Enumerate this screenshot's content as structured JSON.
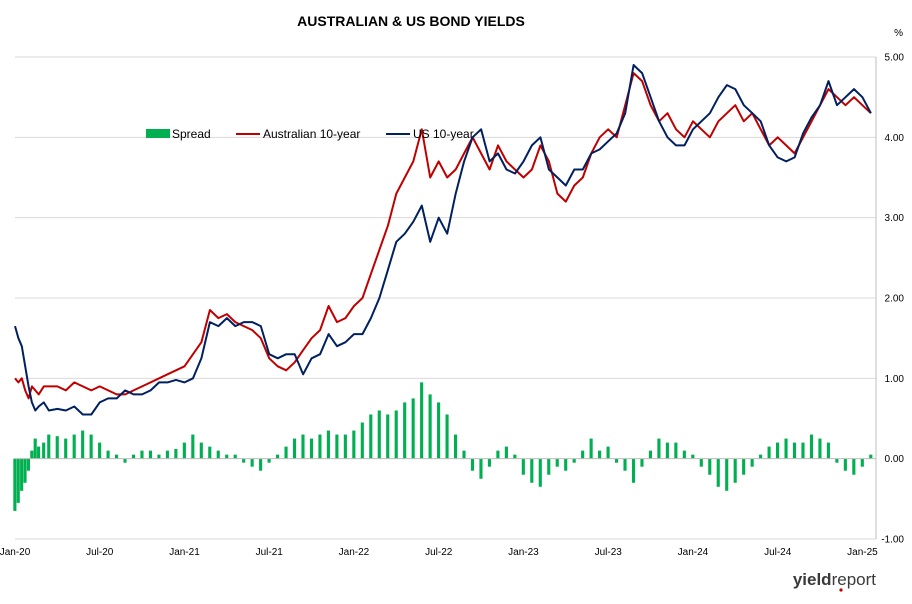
{
  "chart_data": {
    "type": "line",
    "title": "AUSTRALIAN & US BOND YIELDS",
    "y_unit_label": "%",
    "ylim": [
      -1.0,
      5.0
    ],
    "y_ticks": [
      "5.00",
      "4.00",
      "3.00",
      "2.00",
      "1.00",
      "0.00",
      "-1.00"
    ],
    "y_tick_values": [
      5,
      4,
      3,
      2,
      1,
      0,
      -1
    ],
    "x_ticks": [
      "Jan-20",
      "Jul-20",
      "Jan-21",
      "Jul-21",
      "Jan-22",
      "Jul-22",
      "Jan-23",
      "Jul-23",
      "Jan-24",
      "Jul-24",
      "Jan-25"
    ],
    "x_tick_values": [
      2020.0,
      2020.5,
      2021.0,
      2021.5,
      2022.0,
      2022.5,
      2023.0,
      2023.5,
      2024.0,
      2024.5,
      2025.0
    ],
    "x_range": [
      2020.0,
      2025.08
    ],
    "grid": true,
    "legend_position": "top-left, inside plot",
    "series": [
      {
        "name": "Spread",
        "kind": "bar",
        "color": "#00b050",
        "x": [
          2020.0,
          2020.02,
          2020.04,
          2020.06,
          2020.08,
          2020.1,
          2020.12,
          2020.14,
          2020.17,
          2020.2,
          2020.25,
          2020.3,
          2020.35,
          2020.4,
          2020.45,
          2020.5,
          2020.55,
          2020.6,
          2020.65,
          2020.7,
          2020.75,
          2020.8,
          2020.85,
          2020.9,
          2020.95,
          2021.0,
          2021.05,
          2021.1,
          2021.15,
          2021.2,
          2021.25,
          2021.3,
          2021.35,
          2021.4,
          2021.45,
          2021.5,
          2021.55,
          2021.6,
          2021.65,
          2021.7,
          2021.75,
          2021.8,
          2021.85,
          2021.9,
          2021.95,
          2022.0,
          2022.05,
          2022.1,
          2022.15,
          2022.2,
          2022.25,
          2022.3,
          2022.35,
          2022.4,
          2022.45,
          2022.5,
          2022.55,
          2022.6,
          2022.65,
          2022.7,
          2022.75,
          2022.8,
          2022.85,
          2022.9,
          2022.95,
          2023.0,
          2023.05,
          2023.1,
          2023.15,
          2023.2,
          2023.25,
          2023.3,
          2023.35,
          2023.4,
          2023.45,
          2023.5,
          2023.55,
          2023.6,
          2023.65,
          2023.7,
          2023.75,
          2023.8,
          2023.85,
          2023.9,
          2023.95,
          2024.0,
          2024.05,
          2024.1,
          2024.15,
          2024.2,
          2024.25,
          2024.3,
          2024.35,
          2024.4,
          2024.45,
          2024.5,
          2024.55,
          2024.6,
          2024.65,
          2024.7,
          2024.75,
          2024.8,
          2024.85,
          2024.9,
          2024.95,
          2025.0,
          2025.05
        ],
        "values": [
          -0.65,
          -0.55,
          -0.4,
          -0.3,
          -0.15,
          0.1,
          0.25,
          0.15,
          0.2,
          0.3,
          0.28,
          0.25,
          0.3,
          0.35,
          0.3,
          0.2,
          0.1,
          0.05,
          -0.05,
          0.05,
          0.1,
          0.1,
          0.05,
          0.1,
          0.12,
          0.2,
          0.3,
          0.2,
          0.15,
          0.1,
          0.05,
          0.05,
          -0.05,
          -0.1,
          -0.15,
          -0.05,
          0.05,
          0.15,
          0.25,
          0.3,
          0.25,
          0.3,
          0.35,
          0.3,
          0.3,
          0.35,
          0.45,
          0.55,
          0.6,
          0.55,
          0.6,
          0.7,
          0.75,
          0.95,
          0.8,
          0.7,
          0.55,
          0.3,
          0.1,
          -0.15,
          -0.25,
          -0.1,
          0.1,
          0.15,
          0.05,
          -0.2,
          -0.3,
          -0.35,
          -0.2,
          -0.1,
          -0.15,
          -0.05,
          0.1,
          0.25,
          0.1,
          0.15,
          -0.05,
          -0.15,
          -0.3,
          -0.1,
          0.1,
          0.25,
          0.2,
          0.2,
          0.1,
          0.05,
          -0.1,
          -0.2,
          -0.35,
          -0.4,
          -0.3,
          -0.2,
          -0.1,
          0.05,
          0.15,
          0.2,
          0.25,
          0.2,
          0.2,
          0.3,
          0.25,
          0.2,
          -0.05,
          -0.15,
          -0.2,
          -0.1,
          0.05
        ]
      },
      {
        "name": "Australian 10-year",
        "kind": "line",
        "color": "#c00000",
        "x": [
          2020.0,
          2020.02,
          2020.04,
          2020.06,
          2020.08,
          2020.1,
          2020.12,
          2020.14,
          2020.17,
          2020.2,
          2020.25,
          2020.3,
          2020.35,
          2020.4,
          2020.45,
          2020.5,
          2020.55,
          2020.6,
          2020.65,
          2020.7,
          2020.75,
          2020.8,
          2020.85,
          2020.9,
          2020.95,
          2021.0,
          2021.05,
          2021.1,
          2021.15,
          2021.2,
          2021.25,
          2021.3,
          2021.35,
          2021.4,
          2021.45,
          2021.5,
          2021.55,
          2021.6,
          2021.65,
          2021.7,
          2021.75,
          2021.8,
          2021.85,
          2021.9,
          2021.95,
          2022.0,
          2022.05,
          2022.1,
          2022.15,
          2022.2,
          2022.25,
          2022.3,
          2022.35,
          2022.4,
          2022.45,
          2022.5,
          2022.55,
          2022.6,
          2022.65,
          2022.7,
          2022.75,
          2022.8,
          2022.85,
          2022.9,
          2022.95,
          2023.0,
          2023.05,
          2023.1,
          2023.15,
          2023.2,
          2023.25,
          2023.3,
          2023.35,
          2023.4,
          2023.45,
          2023.5,
          2023.55,
          2023.6,
          2023.65,
          2023.7,
          2023.75,
          2023.8,
          2023.85,
          2023.9,
          2023.95,
          2024.0,
          2024.05,
          2024.1,
          2024.15,
          2024.2,
          2024.25,
          2024.3,
          2024.35,
          2024.4,
          2024.45,
          2024.5,
          2024.55,
          2024.6,
          2024.65,
          2024.7,
          2024.75,
          2024.8,
          2024.85,
          2024.9,
          2024.95,
          2025.0,
          2025.05
        ],
        "values": [
          1.0,
          0.95,
          1.0,
          0.85,
          0.75,
          0.9,
          0.85,
          0.8,
          0.9,
          0.9,
          0.9,
          0.85,
          0.95,
          0.9,
          0.85,
          0.9,
          0.85,
          0.8,
          0.8,
          0.85,
          0.9,
          0.95,
          1.0,
          1.05,
          1.1,
          1.15,
          1.3,
          1.45,
          1.85,
          1.75,
          1.8,
          1.7,
          1.65,
          1.6,
          1.5,
          1.25,
          1.15,
          1.1,
          1.2,
          1.35,
          1.5,
          1.6,
          1.9,
          1.7,
          1.75,
          1.9,
          2.0,
          2.3,
          2.6,
          2.9,
          3.3,
          3.5,
          3.7,
          4.1,
          3.5,
          3.7,
          3.5,
          3.6,
          3.8,
          4.0,
          3.8,
          3.6,
          3.9,
          3.7,
          3.6,
          3.5,
          3.6,
          3.9,
          3.7,
          3.3,
          3.2,
          3.4,
          3.5,
          3.8,
          4.0,
          4.1,
          4.0,
          4.4,
          4.8,
          4.7,
          4.4,
          4.2,
          4.3,
          4.1,
          4.0,
          4.2,
          4.1,
          4.0,
          4.2,
          4.3,
          4.4,
          4.2,
          4.3,
          4.1,
          3.9,
          4.0,
          3.9,
          3.8,
          4.0,
          4.2,
          4.4,
          4.6,
          4.5,
          4.4,
          4.5,
          4.4,
          4.3
        ]
      },
      {
        "name": "US 10-year",
        "kind": "line",
        "color": "#002060",
        "x": [
          2020.0,
          2020.02,
          2020.04,
          2020.06,
          2020.08,
          2020.1,
          2020.12,
          2020.14,
          2020.17,
          2020.2,
          2020.25,
          2020.3,
          2020.35,
          2020.4,
          2020.45,
          2020.5,
          2020.55,
          2020.6,
          2020.65,
          2020.7,
          2020.75,
          2020.8,
          2020.85,
          2020.9,
          2020.95,
          2021.0,
          2021.05,
          2021.1,
          2021.15,
          2021.2,
          2021.25,
          2021.3,
          2021.35,
          2021.4,
          2021.45,
          2021.5,
          2021.55,
          2021.6,
          2021.65,
          2021.7,
          2021.75,
          2021.8,
          2021.85,
          2021.9,
          2021.95,
          2022.0,
          2022.05,
          2022.1,
          2022.15,
          2022.2,
          2022.25,
          2022.3,
          2022.35,
          2022.4,
          2022.45,
          2022.5,
          2022.55,
          2022.6,
          2022.65,
          2022.7,
          2022.75,
          2022.8,
          2022.85,
          2022.9,
          2022.95,
          2023.0,
          2023.05,
          2023.1,
          2023.15,
          2023.2,
          2023.25,
          2023.3,
          2023.35,
          2023.4,
          2023.45,
          2023.5,
          2023.55,
          2023.6,
          2023.65,
          2023.7,
          2023.75,
          2023.8,
          2023.85,
          2023.9,
          2023.95,
          2024.0,
          2024.05,
          2024.1,
          2024.15,
          2024.2,
          2024.25,
          2024.3,
          2024.35,
          2024.4,
          2024.45,
          2024.5,
          2024.55,
          2024.6,
          2024.65,
          2024.7,
          2024.75,
          2024.8,
          2024.85,
          2024.9,
          2024.95,
          2025.0,
          2025.05
        ],
        "values": [
          1.65,
          1.5,
          1.4,
          1.15,
          0.9,
          0.7,
          0.6,
          0.65,
          0.7,
          0.6,
          0.62,
          0.6,
          0.65,
          0.55,
          0.55,
          0.7,
          0.75,
          0.75,
          0.85,
          0.8,
          0.8,
          0.85,
          0.95,
          0.95,
          0.98,
          0.95,
          1.0,
          1.25,
          1.7,
          1.65,
          1.75,
          1.65,
          1.7,
          1.7,
          1.65,
          1.3,
          1.25,
          1.3,
          1.3,
          1.05,
          1.25,
          1.3,
          1.55,
          1.4,
          1.45,
          1.55,
          1.55,
          1.75,
          2.0,
          2.35,
          2.7,
          2.8,
          2.95,
          3.15,
          2.7,
          3.0,
          2.8,
          3.3,
          3.7,
          4.0,
          4.1,
          3.7,
          3.8,
          3.6,
          3.55,
          3.7,
          3.9,
          4.0,
          3.6,
          3.5,
          3.4,
          3.6,
          3.6,
          3.8,
          3.85,
          3.95,
          4.05,
          4.3,
          4.9,
          4.8,
          4.5,
          4.2,
          4.0,
          3.9,
          3.9,
          4.1,
          4.2,
          4.3,
          4.5,
          4.65,
          4.6,
          4.4,
          4.3,
          4.2,
          3.9,
          3.75,
          3.7,
          3.75,
          4.05,
          4.25,
          4.4,
          4.7,
          4.4,
          4.5,
          4.6,
          4.5,
          4.3
        ]
      }
    ]
  },
  "logo": {
    "part_a": "yield",
    "part_b": "report"
  }
}
